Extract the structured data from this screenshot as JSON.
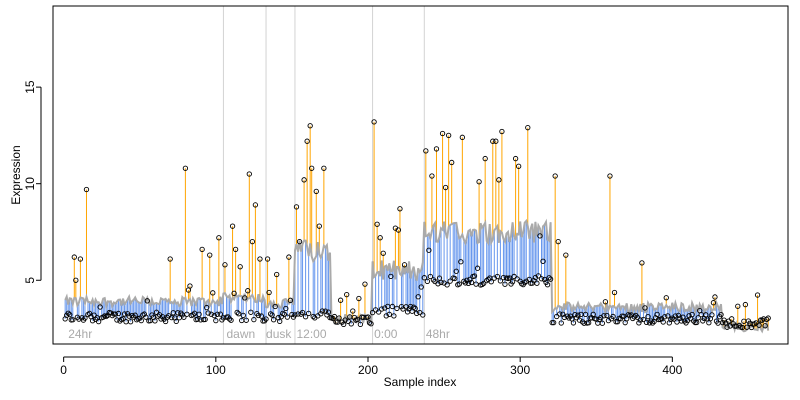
{
  "chart_data": {
    "type": "scatter",
    "title": "",
    "xlabel": "Sample index",
    "ylabel": "Expression",
    "xlim": [
      -7,
      476
    ],
    "ylim": [
      1.7,
      19.2
    ],
    "x_ticks": [
      0,
      100,
      200,
      300,
      400
    ],
    "y_ticks": [
      5,
      10,
      15
    ],
    "grid": false,
    "legend": "none",
    "colors": {
      "above_fit": "#ffa500",
      "below_fit": "#6495ed",
      "fit_line": "#aaaaaa",
      "point_edge": "#000000",
      "vline": "#d3d3d3",
      "annotation": "#aaaaaa"
    },
    "vlines": [
      105,
      133,
      152,
      203,
      237
    ],
    "annotations": [
      {
        "x": 3,
        "text": "24hr"
      },
      {
        "x": 107,
        "text": "dawn"
      },
      {
        "x": 133,
        "text": "dusk"
      },
      {
        "x": 153,
        "text": "12:00"
      },
      {
        "x": 204,
        "text": "0:00"
      },
      {
        "x": 238,
        "text": "48hr"
      }
    ],
    "segments": [
      {
        "x0": 1,
        "x1": 104,
        "base": 3.1,
        "fit": 3.9
      },
      {
        "x0": 105,
        "x1": 132,
        "base": 3.1,
        "fit": 4.1
      },
      {
        "x0": 133,
        "x1": 151,
        "base": 3.1,
        "fit": 3.8
      },
      {
        "x0": 152,
        "x1": 175,
        "base": 3.3,
        "fit": 6.5
      },
      {
        "x0": 176,
        "x1": 202,
        "base": 2.9,
        "fit": 3.0
      },
      {
        "x0": 203,
        "x1": 236,
        "base": 3.4,
        "fit": 5.5
      },
      {
        "x0": 237,
        "x1": 320,
        "base": 5.0,
        "fit": 7.5
      },
      {
        "x0": 321,
        "x1": 432,
        "base": 3.0,
        "fit": 3.6
      },
      {
        "x0": 433,
        "x1": 463,
        "base": 2.8,
        "fit": 2.6
      }
    ],
    "outliers": [
      [
        7,
        6.2
      ],
      [
        8,
        5.0
      ],
      [
        11,
        6.1
      ],
      [
        15,
        9.7
      ],
      [
        70,
        6.1
      ],
      [
        80,
        10.8
      ],
      [
        83,
        4.7
      ],
      [
        91,
        6.6
      ],
      [
        96,
        6.3
      ],
      [
        102,
        7.2
      ],
      [
        106,
        5.8
      ],
      [
        111,
        7.8
      ],
      [
        113,
        6.6
      ],
      [
        116,
        5.7
      ],
      [
        122,
        10.5
      ],
      [
        124,
        7.0
      ],
      [
        126,
        8.9
      ],
      [
        129,
        6.1
      ],
      [
        134,
        6.1
      ],
      [
        140,
        5.3
      ],
      [
        148,
        6.2
      ],
      [
        153,
        8.8
      ],
      [
        155,
        7.0
      ],
      [
        158,
        10.2
      ],
      [
        160,
        12.2
      ],
      [
        162,
        13.0
      ],
      [
        163,
        10.8
      ],
      [
        166,
        9.6
      ],
      [
        168,
        7.8
      ],
      [
        171,
        10.8
      ],
      [
        198,
        4.8
      ],
      [
        204,
        13.2
      ],
      [
        206,
        7.9
      ],
      [
        208,
        7.2
      ],
      [
        210,
        6.4
      ],
      [
        215,
        5.2
      ],
      [
        218,
        7.7
      ],
      [
        220,
        7.6
      ],
      [
        221,
        8.7
      ],
      [
        224,
        5.8
      ],
      [
        238,
        11.7
      ],
      [
        242,
        10.4
      ],
      [
        245,
        11.8
      ],
      [
        249,
        12.6
      ],
      [
        251,
        9.8
      ],
      [
        253,
        12.5
      ],
      [
        255,
        11.1
      ],
      [
        262,
        12.4
      ],
      [
        273,
        10.1
      ],
      [
        277,
        11.3
      ],
      [
        282,
        12.2
      ],
      [
        284,
        12.2
      ],
      [
        286,
        10.2
      ],
      [
        288,
        12.7
      ],
      [
        297,
        11.3
      ],
      [
        299,
        10.9
      ],
      [
        305,
        12.9
      ],
      [
        313,
        7.3
      ],
      [
        323,
        10.4
      ],
      [
        325,
        7.0
      ],
      [
        330,
        6.3
      ],
      [
        359,
        10.4
      ],
      [
        380,
        5.9
      ]
    ]
  }
}
